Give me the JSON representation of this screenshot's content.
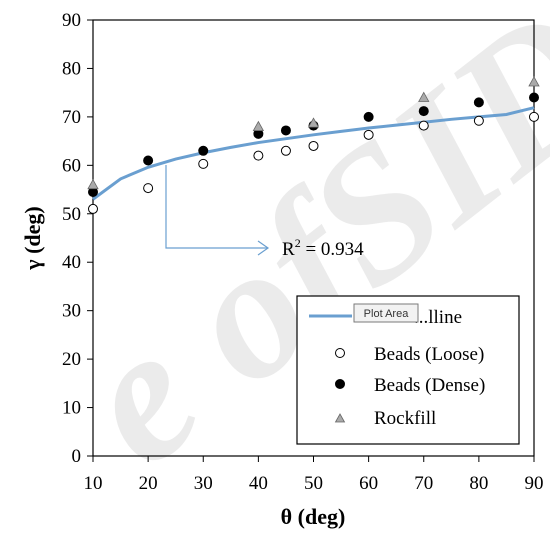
{
  "chart_data": {
    "type": "scatter",
    "xlabel": "θ (deg)",
    "ylabel": "γ (deg)",
    "xlim": [
      10,
      90
    ],
    "ylim": [
      0,
      90
    ],
    "x_ticks": [
      10,
      20,
      30,
      40,
      50,
      60,
      70,
      80,
      90
    ],
    "y_ticks": [
      0,
      10,
      20,
      30,
      40,
      50,
      60,
      70,
      80,
      90
    ],
    "grid": false,
    "legend_position": "bottom-right",
    "annotation": {
      "text_prefix": "R",
      "text_sup": "2",
      "text_rest": " = 0.934"
    },
    "tooltip": "Plot Area",
    "watermark": "e ofSID",
    "series": [
      {
        "name": "Fitted line",
        "visible_label": "...lline",
        "kind": "line",
        "color": "#6a9fd0",
        "x": [
          10,
          15,
          20,
          25,
          30,
          35,
          40,
          45,
          50,
          55,
          60,
          65,
          70,
          75,
          80,
          85,
          90
        ],
        "y": [
          53.0,
          57.2,
          59.6,
          61.3,
          62.6,
          63.7,
          64.7,
          65.5,
          66.3,
          67.0,
          67.7,
          68.3,
          68.9,
          69.5,
          70.0,
          70.5,
          71.9
        ]
      },
      {
        "name": "Beads (Loose)",
        "kind": "open-circle",
        "color": "#000000",
        "x": [
          10,
          20,
          30,
          40,
          45,
          50,
          60,
          70,
          80,
          90
        ],
        "y": [
          51,
          55.3,
          60.3,
          62,
          63,
          64,
          66.3,
          68.2,
          69.2,
          70
        ]
      },
      {
        "name": "Beads (Dense)",
        "kind": "filled-circle",
        "color": "#000000",
        "x": [
          10,
          20,
          30,
          40,
          45,
          50,
          60,
          70,
          80,
          90
        ],
        "y": [
          54.5,
          61,
          63,
          66.5,
          67.2,
          68.2,
          70,
          71.2,
          73,
          74
        ]
      },
      {
        "name": "Rockfill",
        "kind": "triangle",
        "color": "#999999",
        "x": [
          10,
          40,
          50,
          70,
          90
        ],
        "y": [
          55.8,
          67.8,
          68.5,
          73.8,
          77
        ]
      }
    ]
  }
}
